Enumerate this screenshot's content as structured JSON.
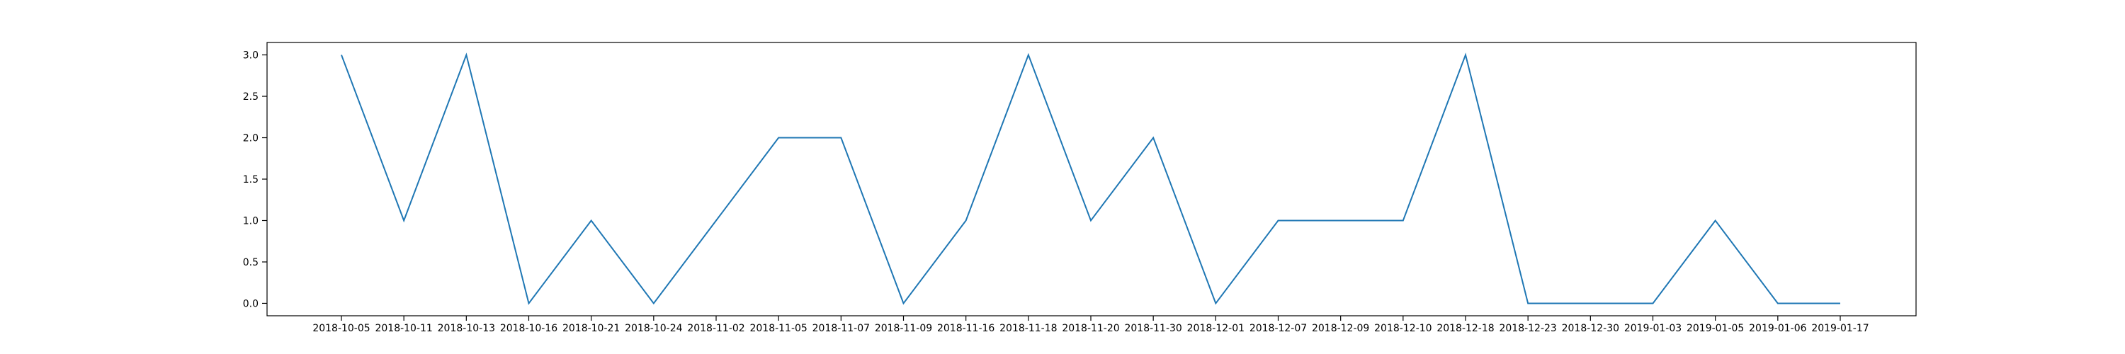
{
  "chart_data": {
    "type": "line",
    "title": "",
    "xlabel": "",
    "ylabel": "",
    "x": [
      "2018-10-05",
      "2018-10-11",
      "2018-10-13",
      "2018-10-16",
      "2018-10-21",
      "2018-10-24",
      "2018-11-02",
      "2018-11-05",
      "2018-11-07",
      "2018-11-09",
      "2018-11-16",
      "2018-11-18",
      "2018-11-20",
      "2018-11-30",
      "2018-12-01",
      "2018-12-07",
      "2018-12-09",
      "2018-12-10",
      "2018-12-18",
      "2018-12-23",
      "2018-12-30",
      "2019-01-03",
      "2019-01-05",
      "2019-01-06",
      "2019-01-17"
    ],
    "series": [
      {
        "values": [
          3,
          1,
          3,
          0,
          1,
          0,
          1,
          2,
          2,
          0,
          1,
          3,
          1,
          2,
          0,
          1,
          1,
          1,
          3,
          0,
          0,
          0,
          1,
          0,
          0
        ],
        "color": "#1f77b4"
      }
    ],
    "yticks": [
      "0.0",
      "0.5",
      "1.0",
      "1.5",
      "2.0",
      "2.5",
      "3.0"
    ],
    "ylim": [
      -0.15,
      3.15
    ],
    "grid": false,
    "legend": "none",
    "x_axis": "categorical"
  }
}
